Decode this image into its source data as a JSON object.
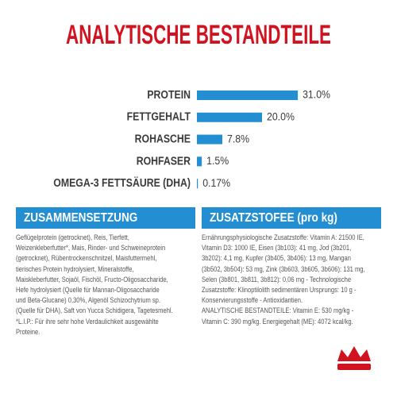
{
  "chart_data": {
    "type": "bar",
    "orientation": "horizontal",
    "title": "ANALYTISCHE BESTANDTEILE",
    "categories": [
      "PROTEIN",
      "FETTGEHALT",
      "ROHASCHE",
      "ROHFASER",
      "OMEGA-3 FETTSÄURE (DHA)"
    ],
    "values": [
      31.0,
      20.0,
      7.8,
      1.5,
      0.17
    ],
    "value_labels": [
      "31.0%",
      "20.0%",
      "7.8%",
      "1.5%",
      "0.17%"
    ],
    "color": "#238fd2"
  },
  "panels": [
    {
      "title": "ZUSAMMENSETZUNG",
      "lines": [
        "Geflügelprotein (getrocknet), Reis, Tierfett,",
        "Weizenkleberfutter*, Mais, Rinder- und Schweineprotein",
        "(getrocknet), Rübentrockenschnitzel, Maisfuttermehl,",
        "tierisches Protein hydrolysiert, Mineralstoffe,",
        "Maiskleberfutter, Sojaöl, Fischöl, Fructo-Oligosaccharide,",
        "Hefe hydrolysiert (Quelle für Mannan-Oligosaccharide",
        "und Beta-Glucane) 0,30%, Algenöl Schizochytrium sp.",
        "(Quelle für DHA), Saft von Yucca Schidigera, Tagetesmehl.",
        "*L.I.P.: Für ihre sehr hohe Verdaulichkeit ausgewählte",
        "Proteine."
      ]
    },
    {
      "title": "ZUSATZSTOFEE (pro kg)",
      "lines": [
        "Ernährungsphysiologische Zusatzstoffe: Vitamin A: 21500 IE,",
        "Vitamin D3: 1000 IE, Eisen (3b103): 41 mg, Jod (3b201,",
        "3b202): 4,1 mg, Kupfer (3b405, 3b406): 13 mg, Mangan",
        "(3b502, 3b504): 53 mg, Zink (3b603, 3b605, 3b606): 131 mg,",
        "Selen (3b801, 3b811, 3b812): 0,06 mg - Technologische",
        "Zusatzstoffe: Klinoptilolith sedimentären Ursprungs: 10 g -",
        "Konservierungsstoffe - Antioxidantien.",
        "ANALYTISCHE BESTANDTEILE: Vitamin E: 530 mg/kg -",
        "Vitamin C: 390 mg/kg. Energiegehalt (ME): 4072 kcal/kg."
      ]
    }
  ]
}
